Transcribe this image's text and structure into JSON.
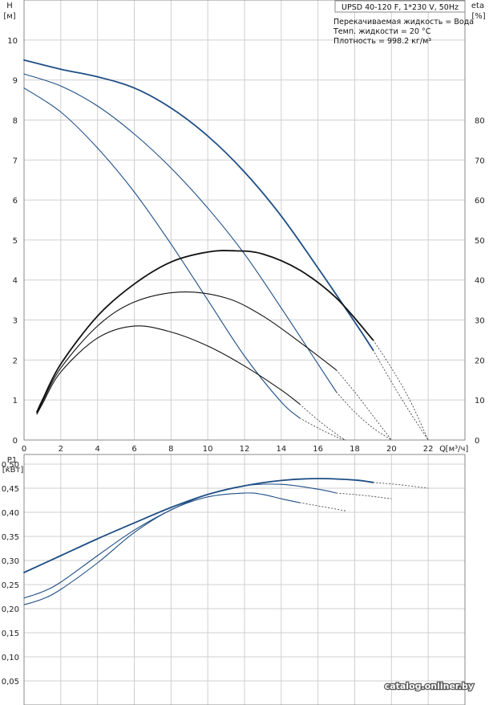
{
  "header": {
    "title": "UPSD 40-120 F, 1*230 V, 50Hz",
    "info_lines": [
      "Перекачиваемая жидкость = Вода",
      "Темп. жидкости = 20 °C",
      "Плотность = 998.2 кг/м³"
    ]
  },
  "watermark": "catalog.onliner.by",
  "colors": {
    "blue": "#1f4e85",
    "black": "#111111",
    "grid": "#cfcfcf",
    "frame": "#888888"
  },
  "chart_data": [
    {
      "type": "line",
      "x_symbol": "Q",
      "x_unit": "[м³/ч]",
      "y_left_symbol": "H",
      "y_left_unit": "[м]",
      "y_right_symbol": "eta",
      "y_right_unit": "[%]",
      "xlim": [
        0,
        24
      ],
      "ylim": [
        0,
        11
      ],
      "y_right_lim": [
        0,
        110
      ],
      "x_ticks": [
        0,
        2,
        4,
        6,
        8,
        10,
        12,
        14,
        16,
        18,
        20,
        22
      ],
      "y_left_ticks": [
        0,
        1,
        2,
        3,
        4,
        5,
        6,
        7,
        8,
        9,
        10
      ],
      "y_right_ticks": [
        0,
        10,
        20,
        30,
        40,
        50,
        60,
        70,
        80
      ],
      "x_tick_labels": [
        "0",
        "2",
        "4",
        "6",
        "8",
        "10",
        "12",
        "14",
        "16",
        "18",
        "20",
        "22"
      ],
      "y_left_tick_labels": [
        "0",
        "1",
        "2",
        "3",
        "4",
        "5",
        "6",
        "7",
        "8",
        "9",
        "10"
      ],
      "y_right_tick_labels": [
        "0",
        "10",
        "20",
        "30",
        "40",
        "50",
        "60",
        "70",
        "80"
      ],
      "grid": true,
      "series": [
        {
          "axis": "left",
          "color": "#1f4e85",
          "width": 1.8,
          "x": [
            0,
            2,
            4,
            6,
            8,
            10,
            12,
            14,
            16,
            18,
            19
          ],
          "y": [
            9.5,
            9.27,
            9.08,
            8.8,
            8.3,
            7.6,
            6.7,
            5.6,
            4.3,
            2.95,
            2.25
          ],
          "ext_x": [
            19,
            20,
            21,
            22
          ],
          "ext_y": [
            2.25,
            1.45,
            0.7,
            0
          ]
        },
        {
          "axis": "left",
          "color": "#1f4e85",
          "width": 1.1,
          "x": [
            0,
            2,
            4,
            6,
            8,
            10,
            12,
            14,
            16,
            17
          ],
          "y": [
            9.15,
            8.85,
            8.35,
            7.65,
            6.8,
            5.8,
            4.65,
            3.3,
            1.9,
            1.2
          ],
          "ext_x": [
            17,
            18,
            19,
            20
          ],
          "ext_y": [
            1.2,
            0.7,
            0.3,
            0
          ]
        },
        {
          "axis": "left",
          "color": "#1f4e85",
          "width": 1.1,
          "x": [
            0,
            2,
            4,
            6,
            8,
            10,
            12,
            14,
            15
          ],
          "y": [
            8.8,
            8.2,
            7.3,
            6.2,
            4.9,
            3.5,
            2.1,
            0.95,
            0.55
          ],
          "ext_x": [
            15,
            16,
            17,
            17.5
          ],
          "ext_y": [
            0.55,
            0.3,
            0.08,
            0
          ]
        },
        {
          "axis": "right",
          "color": "#111111",
          "width": 1.8,
          "x": [
            0.7,
            1,
            2,
            4,
            6,
            8,
            10,
            11.5,
            13,
            15,
            17,
            19
          ],
          "y": [
            7,
            10,
            19,
            31,
            39,
            44.5,
            47,
            47.3,
            46.5,
            42.5,
            35.5,
            25
          ],
          "ext_x": [
            19,
            20,
            21,
            22
          ],
          "ext_y": [
            25,
            18,
            10,
            0
          ]
        },
        {
          "axis": "right",
          "color": "#111111",
          "width": 1.1,
          "x": [
            0.7,
            1,
            2,
            4,
            6,
            8.5,
            11,
            13,
            15,
            17
          ],
          "y": [
            6.5,
            9.5,
            18,
            28.5,
            34.5,
            37,
            35.5,
            31,
            24.5,
            17.5
          ],
          "ext_x": [
            17,
            18,
            19,
            20
          ],
          "ext_y": [
            17.5,
            12,
            6,
            0
          ]
        },
        {
          "axis": "right",
          "color": "#111111",
          "width": 1.1,
          "x": [
            0.7,
            1,
            2,
            4,
            6,
            8,
            10,
            12,
            14,
            15
          ],
          "y": [
            6.5,
            9,
            17,
            25.5,
            28.5,
            27,
            23.5,
            18.5,
            12.5,
            9
          ],
          "ext_x": [
            15,
            16,
            17,
            17.5
          ],
          "ext_y": [
            9,
            5,
            1.5,
            0
          ]
        }
      ]
    },
    {
      "type": "line",
      "y_left_symbol": "P1",
      "y_left_unit": "[кВт]",
      "xlim": [
        0,
        24
      ],
      "ylim": [
        0,
        0.52
      ],
      "x_ticks": [
        0,
        2,
        4,
        6,
        8,
        10,
        12,
        14,
        16,
        18,
        20,
        22
      ],
      "y_left_ticks": [
        0.05,
        0.1,
        0.15,
        0.2,
        0.25,
        0.3,
        0.35,
        0.4,
        0.45,
        0.5
      ],
      "y_left_tick_labels": [
        "0,05",
        "0,10",
        "0,15",
        "0,20",
        "0,25",
        "0,30",
        "0,35",
        "0,40",
        "0,45",
        "0,50"
      ],
      "grid": true,
      "series": [
        {
          "color": "#1f4e85",
          "width": 1.8,
          "x": [
            0,
            2,
            4,
            6,
            8,
            10,
            12,
            14,
            16,
            18,
            19
          ],
          "y": [
            0.275,
            0.31,
            0.345,
            0.378,
            0.41,
            0.437,
            0.455,
            0.466,
            0.47,
            0.467,
            0.462
          ],
          "ext_x": [
            19,
            20.5,
            22
          ],
          "ext_y": [
            0.462,
            0.457,
            0.45
          ]
        },
        {
          "color": "#1f4e85",
          "width": 1.1,
          "x": [
            0,
            1,
            2,
            4,
            6,
            8,
            10,
            12,
            14,
            16,
            17
          ],
          "y": [
            0.222,
            0.235,
            0.255,
            0.31,
            0.363,
            0.405,
            0.437,
            0.455,
            0.458,
            0.448,
            0.44
          ],
          "ext_x": [
            17,
            18.5,
            20
          ],
          "ext_y": [
            0.44,
            0.435,
            0.428
          ]
        },
        {
          "color": "#1f4e85",
          "width": 1.1,
          "x": [
            0,
            1,
            2,
            4,
            6,
            8,
            10,
            12,
            13,
            14,
            15
          ],
          "y": [
            0.208,
            0.22,
            0.24,
            0.295,
            0.358,
            0.405,
            0.432,
            0.44,
            0.437,
            0.428,
            0.42
          ],
          "ext_x": [
            15,
            16.5,
            17.5
          ],
          "ext_y": [
            0.42,
            0.41,
            0.403
          ]
        }
      ]
    }
  ]
}
